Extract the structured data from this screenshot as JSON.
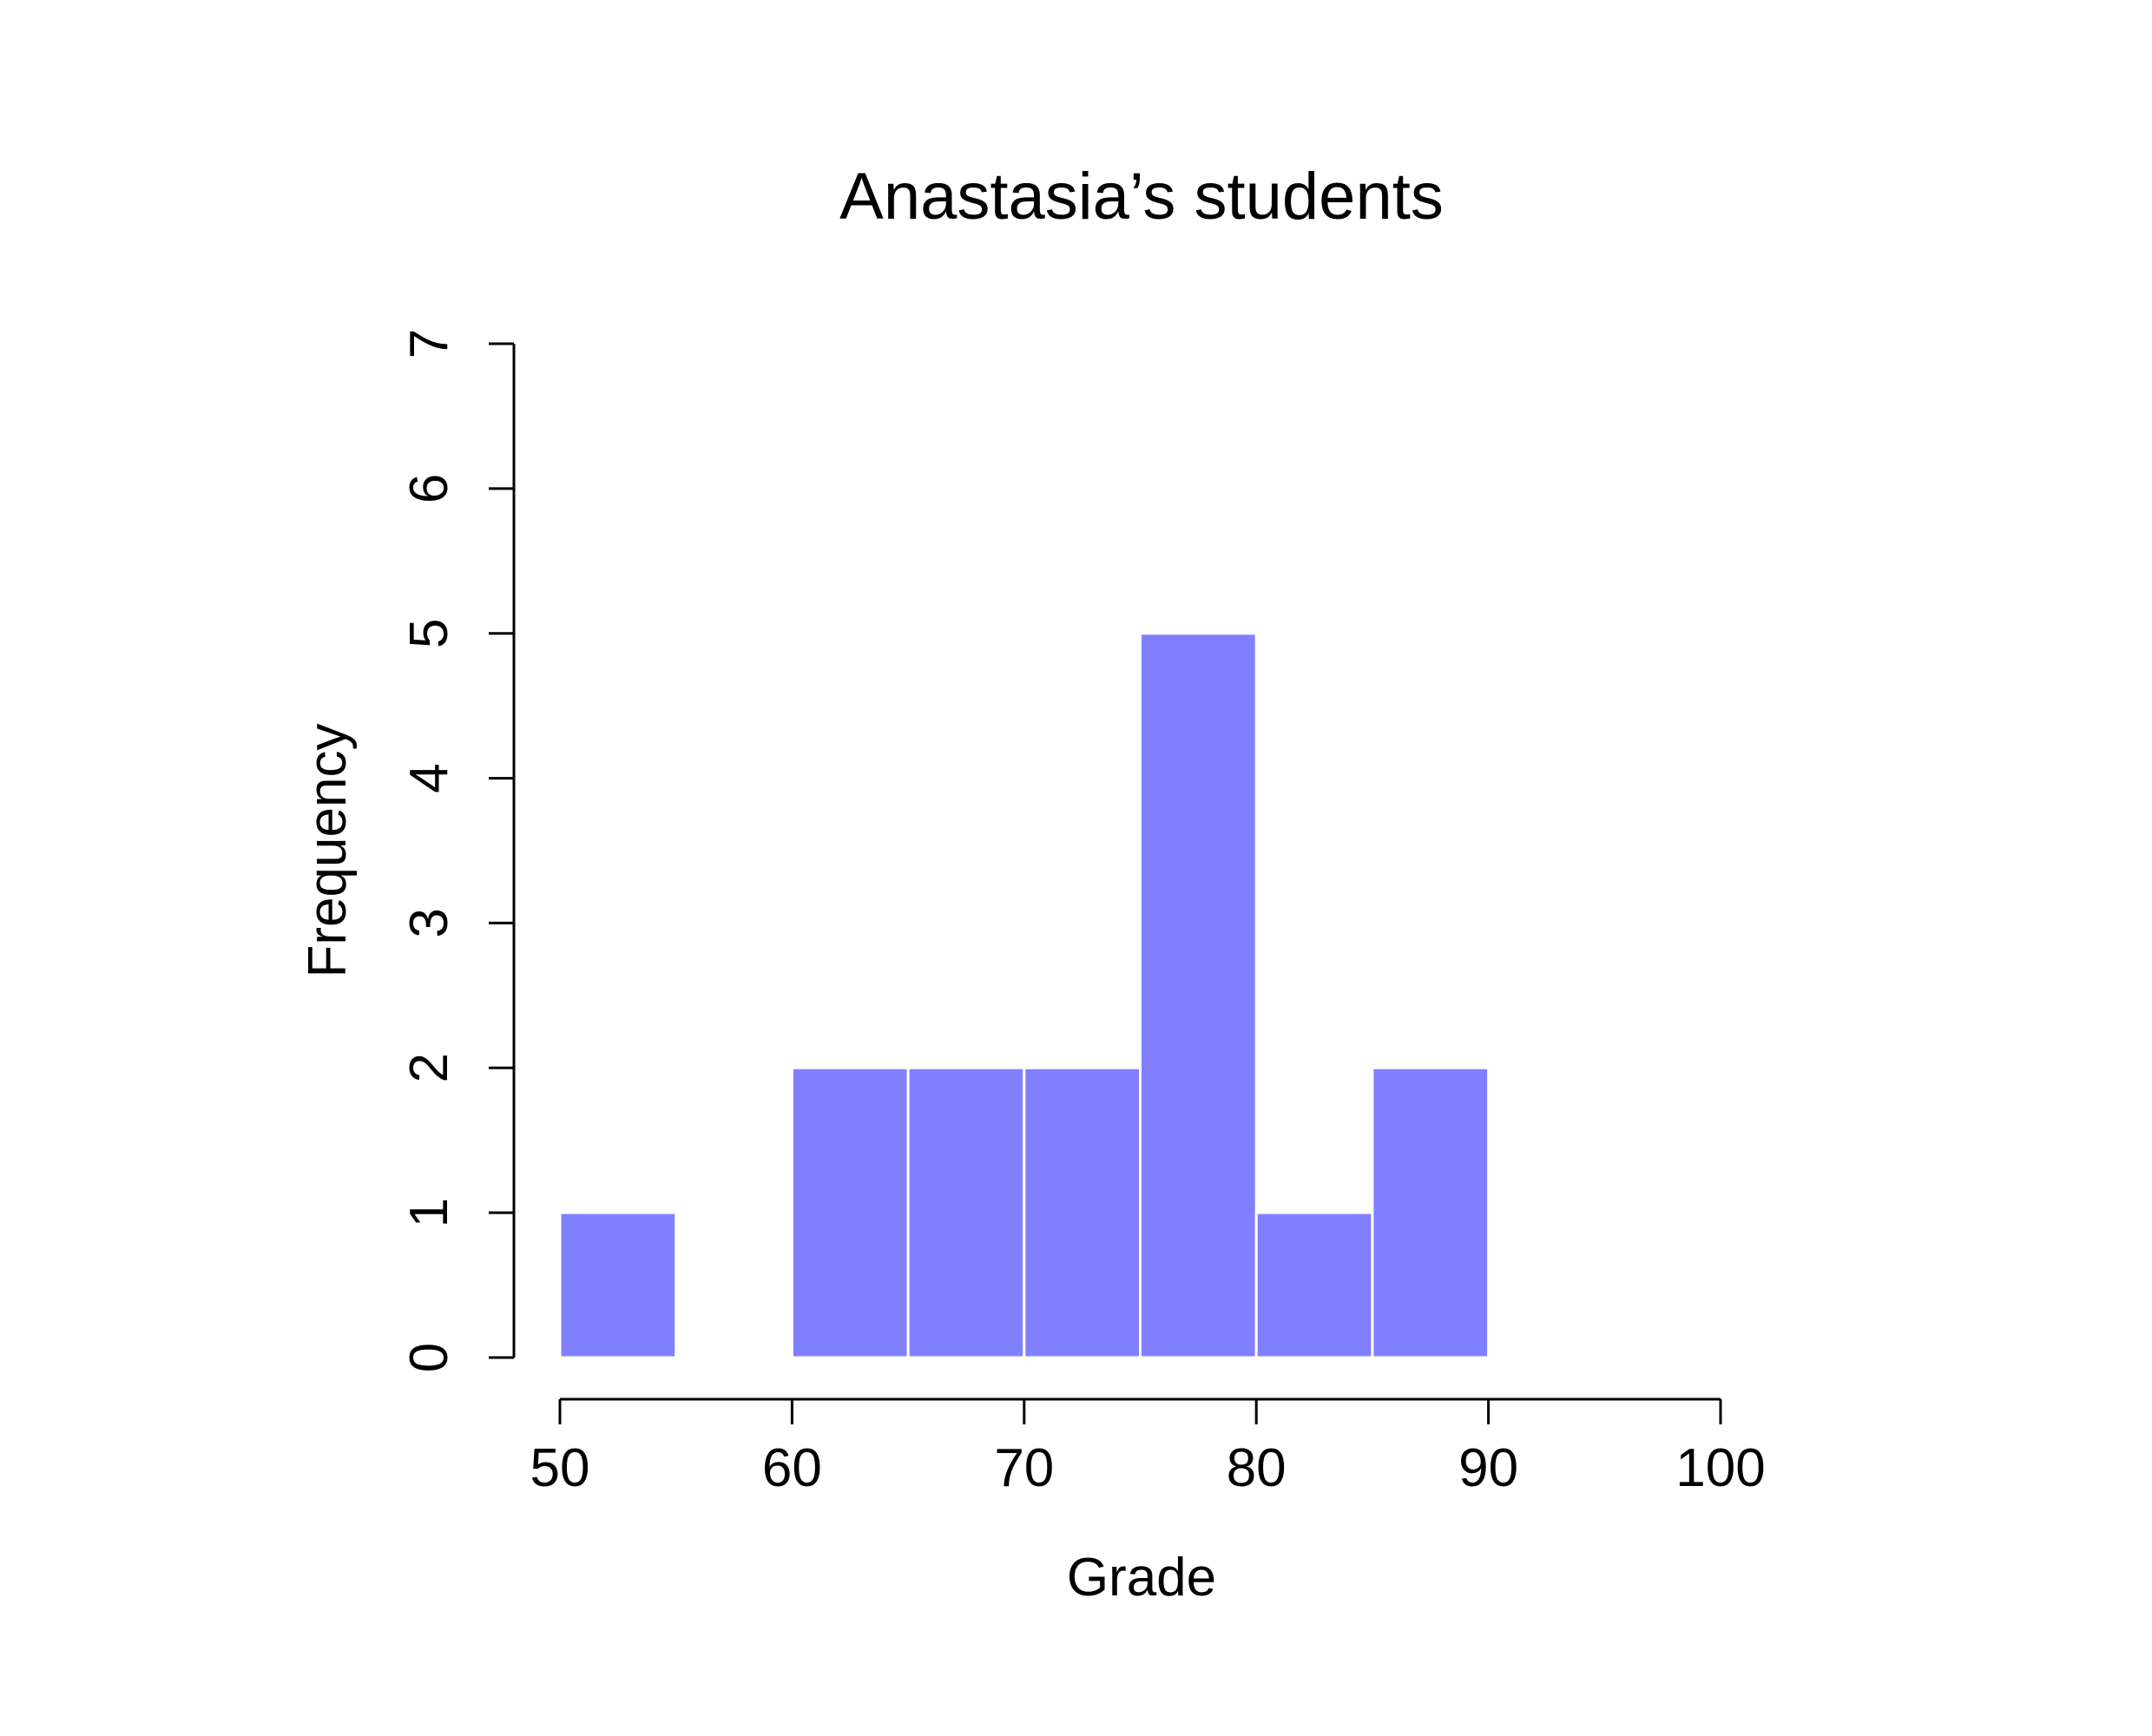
{
  "chart_data": {
    "type": "bar",
    "title": "Anastasia’s students",
    "xlabel": "Grade",
    "ylabel": "Frequency",
    "bins": [
      {
        "start": 50,
        "end": 55,
        "count": 1
      },
      {
        "start": 55,
        "end": 60,
        "count": 0
      },
      {
        "start": 60,
        "end": 65,
        "count": 2
      },
      {
        "start": 65,
        "end": 70,
        "count": 2
      },
      {
        "start": 70,
        "end": 75,
        "count": 2
      },
      {
        "start": 75,
        "end": 80,
        "count": 5
      },
      {
        "start": 80,
        "end": 85,
        "count": 1
      },
      {
        "start": 85,
        "end": 90,
        "count": 2
      }
    ],
    "xlim": [
      50,
      100
    ],
    "ylim": [
      0,
      7
    ],
    "x_ticks": [
      "50",
      "60",
      "70",
      "80",
      "90",
      "100"
    ],
    "y_ticks": [
      "0",
      "1",
      "2",
      "3",
      "4",
      "5",
      "6",
      "7"
    ],
    "bar_color": "#8080ff",
    "grid": false,
    "legend": "none"
  }
}
